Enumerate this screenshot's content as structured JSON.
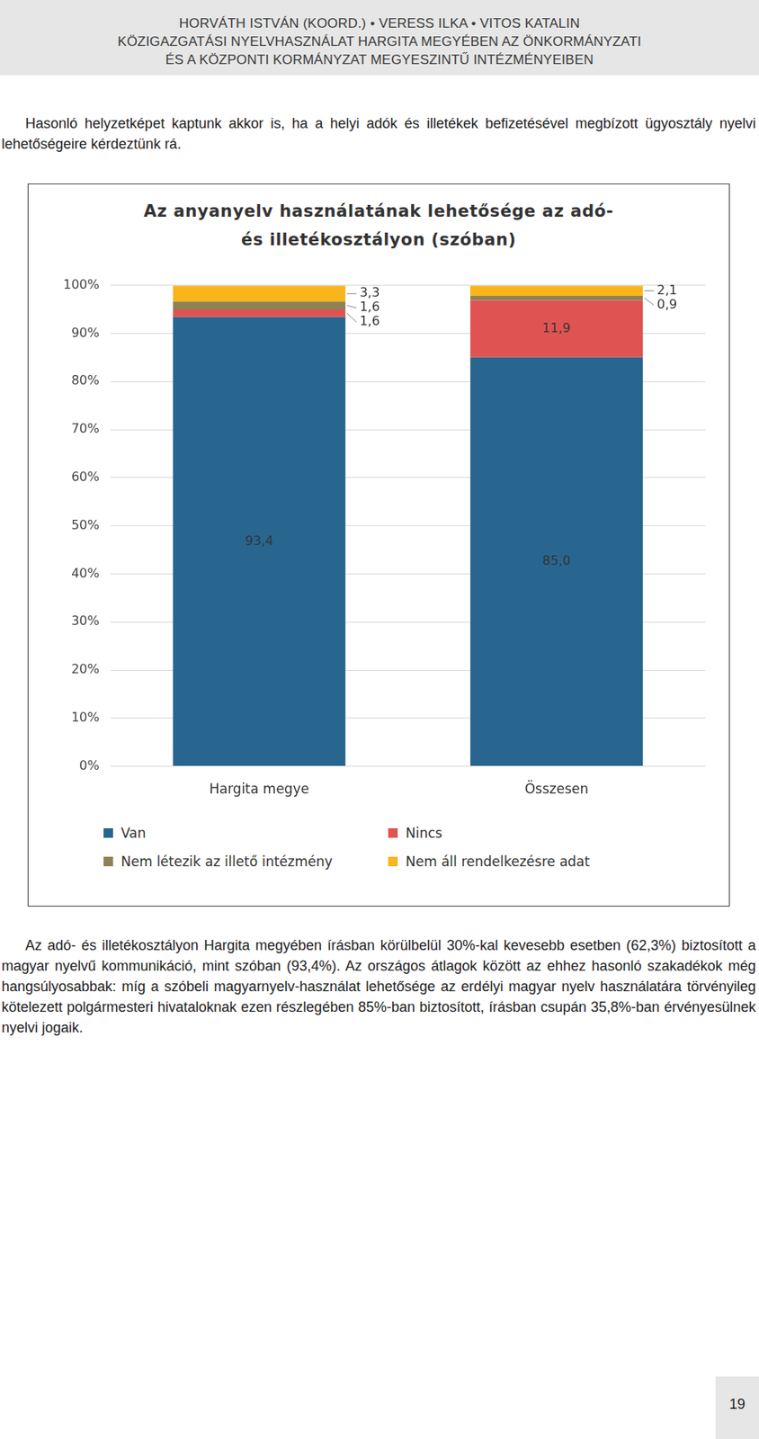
{
  "header": {
    "lines": [
      "HORVÁTH ISTVÁN (KOORD.) • VERESS ILKA • VITOS KATALIN",
      "KÖZIGAZGATÁSI NYELVHASZNÁLAT HARGITA MEGYÉBEN AZ ÖNKORMÁNYZATI",
      "ÉS A KÖZPONTI KORMÁNYZAT MEGYESZINTŰ INTÉZMÉNYEIBEN"
    ]
  },
  "paragraphs": [
    "Hasonló helyzetképet kaptunk akkor is, ha a helyi adók és illetékek befizetésével megbízott ügyosztály nyelvi lehetőségeire kérdeztünk rá.",
    "Az adó- és illetékosztályon Hargita megyében írásban körülbelül 30%-kal kevesebb esetben (62,3%) biztosított a magyar nyelvű kommunikáció, mint szóban (93,4%). Az országos átlagok között az ehhez hasonló szakadékok még hangsúlyosabbak: míg a szóbeli magyarnyelv-használat lehetősége az erdélyi magyar nyelv használatára törvényileg kötelezett polgármesteri hivataloknak ezen részlegében 85%-ban biztosított, írásban csupán 35,8%-ban érvényesülnek nyelvi jogaik."
  ],
  "page_number": "19",
  "chart_data": {
    "type": "bar",
    "title": "Az anyanyelv használatának lehetősége az adó- és illetékosztályon (szóban)",
    "categories": [
      "Hargita megye",
      "Összesen"
    ],
    "series": [
      {
        "name": "Van",
        "color": "#28668f",
        "values": [
          93.4,
          85.0
        ],
        "value_labels": [
          "93,4",
          "85,0"
        ]
      },
      {
        "name": "Nincs",
        "color": "#df5452",
        "values": [
          1.6,
          11.9
        ],
        "value_labels": [
          "1,6",
          "11,9"
        ]
      },
      {
        "name": "Nem létezik az illető intézmény",
        "color": "#8d8256",
        "values": [
          1.6,
          0.9
        ],
        "value_labels": [
          "1,6",
          "0,9"
        ]
      },
      {
        "name": "Nem áll rendelkezésre adat",
        "color": "#f9b51b",
        "values": [
          3.3,
          2.1
        ],
        "value_labels": [
          "3,3",
          "2,1"
        ]
      }
    ],
    "stacked": true,
    "data_labels": true,
    "grid": true,
    "legend": "bottom",
    "ylim": [
      0,
      100
    ],
    "yticks": [
      {
        "value": 0,
        "label": "0%"
      },
      {
        "value": 10,
        "label": "10%"
      },
      {
        "value": 20,
        "label": "20%"
      },
      {
        "value": 30,
        "label": "30%"
      },
      {
        "value": 40,
        "label": "40%"
      },
      {
        "value": 50,
        "label": "50%"
      },
      {
        "value": 60,
        "label": "60%"
      },
      {
        "value": 70,
        "label": "70%"
      },
      {
        "value": 80,
        "label": "80%"
      },
      {
        "value": 90,
        "label": "90%"
      },
      {
        "value": 100,
        "label": "100%"
      }
    ]
  }
}
